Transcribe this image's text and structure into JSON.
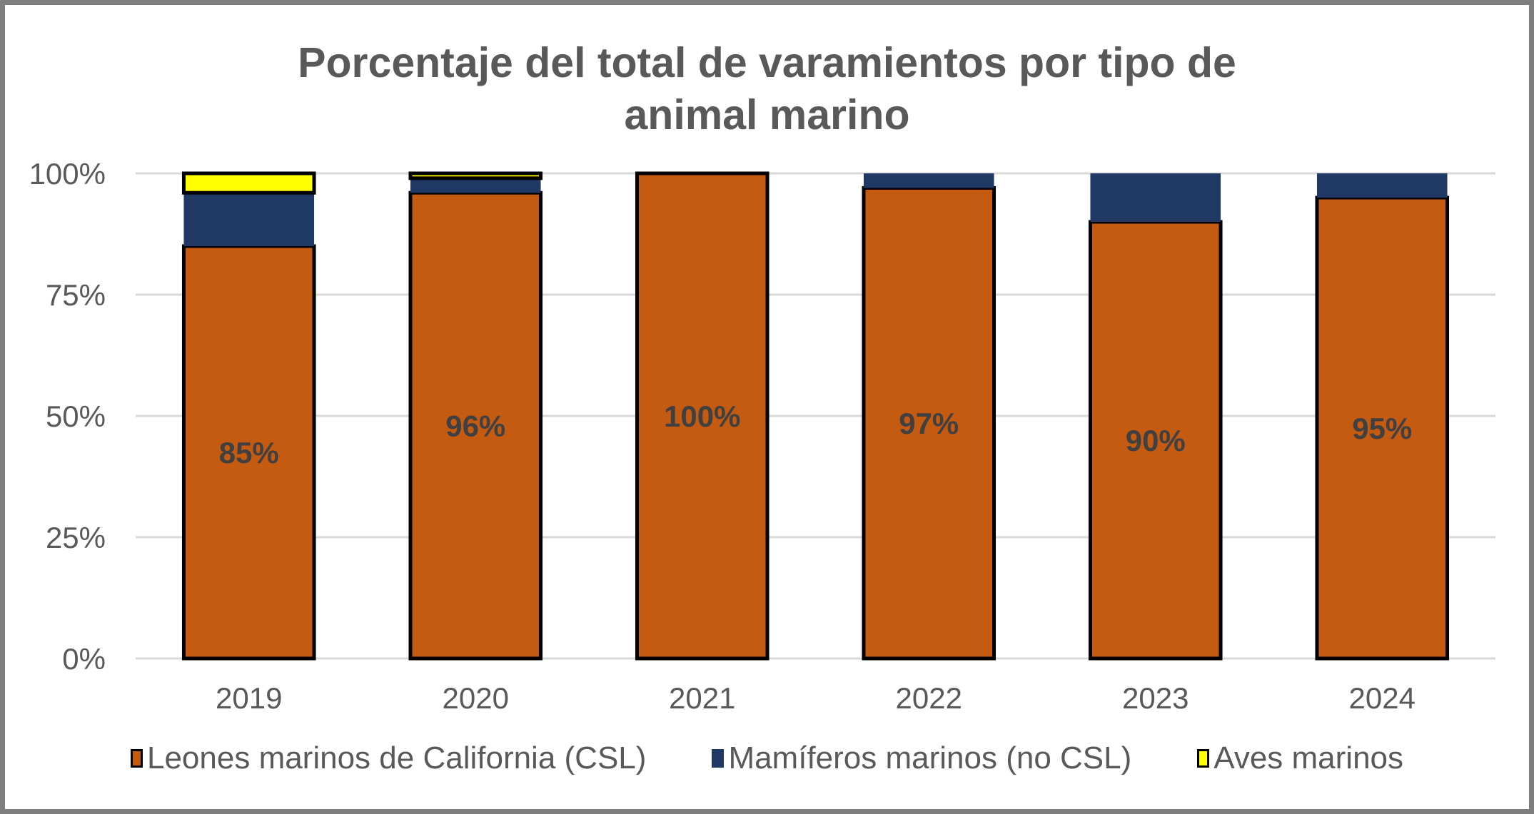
{
  "chart_data": {
    "type": "bar",
    "stacked": true,
    "title": "Porcentaje del total de varamientos por tipo de animal marino",
    "title_lines": [
      "Porcentaje del total de varamientos por tipo de",
      "animal marino"
    ],
    "xlabel": "",
    "ylabel": "",
    "categories": [
      "2019",
      "2020",
      "2021",
      "2022",
      "2023",
      "2024"
    ],
    "ylim": [
      0,
      100
    ],
    "yticks": [
      0,
      25,
      50,
      75,
      100
    ],
    "ytick_labels": [
      "0%",
      "25%",
      "50%",
      "75%",
      "100%"
    ],
    "grid": true,
    "legend_position": "bottom",
    "series": [
      {
        "name": "Leones marinos de California (CSL)",
        "color": "#C55A11",
        "outlined": true,
        "values": [
          85,
          96,
          100,
          97,
          90,
          95
        ]
      },
      {
        "name": "Mamíferos marinos (no CSL)",
        "color": "#203864",
        "outlined": false,
        "values": [
          11,
          3,
          0,
          3,
          10,
          5
        ]
      },
      {
        "name": "Aves marinos",
        "color": "#FFFF00",
        "outlined": true,
        "values": [
          4,
          1,
          0,
          0,
          0,
          0
        ]
      }
    ],
    "data_labels": [
      "85%",
      "96%",
      "100%",
      "97%",
      "90%",
      "95%"
    ],
    "data_label_series": "Leones marinos de California (CSL)"
  }
}
